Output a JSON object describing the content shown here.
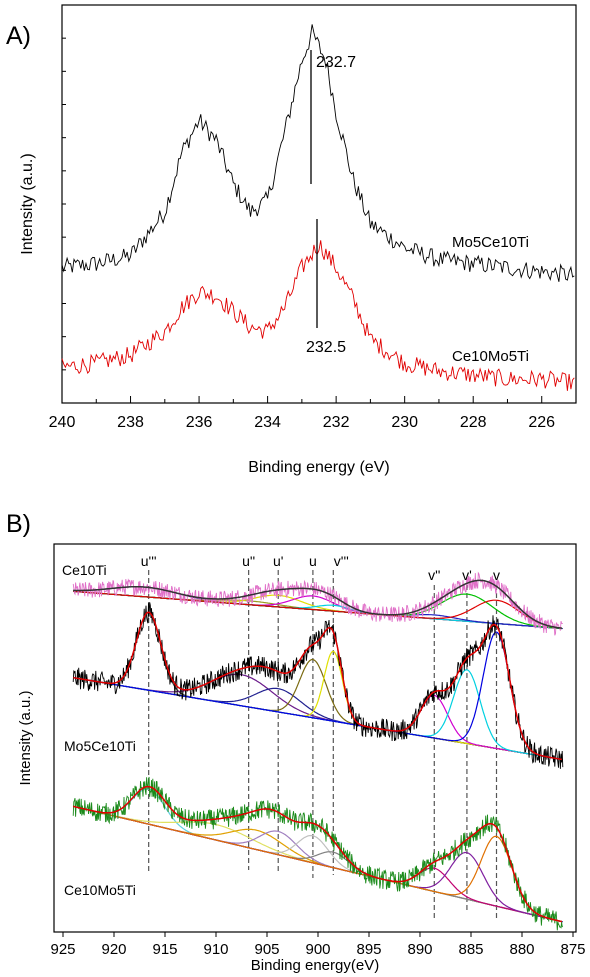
{
  "panel_a": {
    "letter": "A)",
    "xlabel": "Binding energy (eV)",
    "ylabel": "Intensity (a.u.)",
    "xticks": [
      240,
      238,
      236,
      234,
      232,
      230,
      228,
      226
    ],
    "annotations": [
      {
        "text": "232.7",
        "x": 232.7
      },
      {
        "text": "232.5",
        "x": 232.5
      }
    ]
  },
  "panel_b": {
    "letter": "B)",
    "xlabel": "Binding energy(eV)",
    "ylabel": "Intensity (a.u.)",
    "xticks": [
      925,
      920,
      915,
      910,
      905,
      900,
      895,
      890,
      885,
      880,
      875
    ],
    "peak_labels": [
      {
        "text": "u'''",
        "x": 916.6
      },
      {
        "text": "u''",
        "x": 906.8
      },
      {
        "text": "u'",
        "x": 903.9
      },
      {
        "text": "u",
        "x": 900.5
      },
      {
        "text": "v'''",
        "x": 898.5
      },
      {
        "text": "v''",
        "x": 888.6
      },
      {
        "text": "v'",
        "x": 885.4
      },
      {
        "text": "v",
        "x": 882.5
      }
    ]
  },
  "colors": {
    "mo5": "#000000",
    "ce10mo5_a": "#e00000",
    "ce10ti": "#e070c8",
    "ce10mo5_b": "#1a8a1a",
    "fit": "#e00000"
  },
  "chart_data": [
    {
      "type": "line",
      "panel": "A",
      "title": "",
      "xlabel": "Binding energy (eV)",
      "ylabel": "Intensity (a.u.)",
      "xlim": [
        240,
        225
      ],
      "x_reversed": true,
      "series": [
        {
          "name": "Mo5Ce10Ti",
          "peaks": [
            {
              "center": 235.9,
              "height": 0.52
            },
            {
              "center": 232.7,
              "height": 0.82
            }
          ],
          "baseline_left": 0.34,
          "baseline_right": 0.32,
          "x": [
            240,
            239,
            238,
            237,
            236.5,
            236,
            235.5,
            235,
            234.5,
            234,
            233.5,
            233,
            232.7,
            232.3,
            232,
            231.5,
            231,
            230,
            229,
            228,
            227,
            226,
            225
          ],
          "values": [
            0.34,
            0.35,
            0.37,
            0.48,
            0.63,
            0.71,
            0.66,
            0.55,
            0.48,
            0.51,
            0.68,
            0.86,
            0.93,
            0.86,
            0.73,
            0.56,
            0.45,
            0.39,
            0.36,
            0.35,
            0.34,
            0.33,
            0.32
          ]
        },
        {
          "name": "Ce10Mo5Ti",
          "peaks": [
            {
              "center": 235.7,
              "height": 0.26
            },
            {
              "center": 232.5,
              "height": 0.38
            }
          ],
          "baseline_left": 0.09,
          "baseline_right": 0.05,
          "x": [
            240,
            239,
            238,
            237,
            236.5,
            236,
            235.5,
            235,
            234.5,
            234,
            233.5,
            233,
            232.5,
            232,
            231.5,
            231,
            230,
            229,
            228,
            227,
            226,
            225
          ],
          "values": [
            0.09,
            0.1,
            0.12,
            0.18,
            0.24,
            0.28,
            0.27,
            0.23,
            0.19,
            0.18,
            0.24,
            0.34,
            0.4,
            0.34,
            0.26,
            0.16,
            0.1,
            0.08,
            0.07,
            0.06,
            0.06,
            0.05
          ]
        }
      ]
    },
    {
      "type": "line",
      "panel": "B",
      "title": "",
      "xlabel": "Binding energy(eV)",
      "ylabel": "Intensity (a.u.)",
      "xlim": [
        925,
        875
      ],
      "x_reversed": true,
      "series": [
        {
          "name": "Ce10Ti",
          "fit_peaks": [
            {
              "center": 917.0,
              "width": 3.2,
              "height": 0.025,
              "color": "#1e1e8c"
            },
            {
              "center": 906.8,
              "width": 2.8,
              "height": 0.01,
              "color": "#9a9a20"
            },
            {
              "center": 903.9,
              "width": 2.3,
              "height": 0.03,
              "color": "#e0e000"
            },
            {
              "center": 900.5,
              "width": 2.0,
              "height": 0.035,
              "color": "#d000d0"
            },
            {
              "center": 898.5,
              "width": 1.6,
              "height": 0.015,
              "color": "#00d0e0"
            },
            {
              "center": 888.6,
              "width": 2.0,
              "height": 0.01,
              "color": "#2020c0"
            },
            {
              "center": 885.4,
              "width": 2.5,
              "height": 0.07,
              "color": "#00c000"
            },
            {
              "center": 882.5,
              "width": 2.2,
              "height": 0.06,
              "color": "#e00000"
            }
          ],
          "baseline_left": 0.88,
          "baseline_right": 0.78
        },
        {
          "name": "Mo5Ce10Ti",
          "fit_peaks": [
            {
              "center": 916.6,
              "width": 1.2,
              "height": 0.2,
              "color": "#404040"
            },
            {
              "center": 907.5,
              "width": 3.0,
              "height": 0.08,
              "color": "#6a1a8a"
            },
            {
              "center": 903.9,
              "width": 2.2,
              "height": 0.06,
              "color": "#202090"
            },
            {
              "center": 900.5,
              "width": 1.3,
              "height": 0.15,
              "color": "#7a6a10"
            },
            {
              "center": 898.5,
              "width": 0.9,
              "height": 0.18,
              "color": "#e0e000"
            },
            {
              "center": 888.6,
              "width": 1.3,
              "height": 0.11,
              "color": "#d000d0"
            },
            {
              "center": 885.4,
              "width": 1.3,
              "height": 0.19,
              "color": "#00d0e0"
            },
            {
              "center": 882.5,
              "width": 1.3,
              "height": 0.3,
              "color": "#0000e0"
            }
          ],
          "baseline_left": 0.66,
          "baseline_right": 0.44
        },
        {
          "name": "Ce10Mo5Ti",
          "fit_peaks": [
            {
              "center": 916.6,
              "width": 1.6,
              "height": 0.09,
              "color": "#60d0e0"
            },
            {
              "center": 910.0,
              "width": 3.5,
              "height": 0.04,
              "color": "#e0e060"
            },
            {
              "center": 906.0,
              "width": 2.5,
              "height": 0.05,
              "color": "#e0a000"
            },
            {
              "center": 903.9,
              "width": 1.8,
              "height": 0.06,
              "color": "#a080c0"
            },
            {
              "center": 900.5,
              "width": 1.5,
              "height": 0.07,
              "color": "#c0c0c0"
            },
            {
              "center": 898.5,
              "width": 1.5,
              "height": 0.04,
              "color": "#808080"
            },
            {
              "center": 888.6,
              "width": 1.5,
              "height": 0.06,
              "color": "#c00070"
            },
            {
              "center": 885.4,
              "width": 1.6,
              "height": 0.12,
              "color": "#8020a0"
            },
            {
              "center": 882.5,
              "width": 1.5,
              "height": 0.18,
              "color": "#e07000"
            }
          ],
          "baseline_left": 0.33,
          "baseline_right": 0.02
        }
      ]
    }
  ]
}
